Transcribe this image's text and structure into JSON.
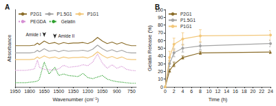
{
  "chart_data": [
    {
      "type": "line",
      "title": "A",
      "x_label": "Wavenumber (cm⁻¹)",
      "y_label": "Absorbance",
      "x": [
        1950,
        1900,
        1850,
        1800,
        1750,
        1720,
        1700,
        1650,
        1600,
        1540,
        1500,
        1450,
        1400,
        1350,
        1300,
        1250,
        1200,
        1150,
        1100,
        1050,
        1000,
        950,
        900,
        850,
        800,
        750,
        700
      ],
      "series": [
        {
          "name": "P2G1",
          "color": "#8b6d2a",
          "line_style": "solid",
          "marker": "none",
          "values": [
            8.0,
            8.0,
            8.0,
            8.0,
            8.1,
            8.5,
            8.2,
            8.9,
            8.4,
            8.6,
            8.3,
            8.6,
            8.4,
            8.5,
            8.5,
            8.6,
            8.4,
            8.8,
            9.6,
            8.9,
            8.4,
            8.7,
            8.3,
            8.6,
            8.2,
            8.0,
            8.0
          ]
        },
        {
          "name": "P1.5G1",
          "color": "#a3a3a3",
          "line_style": "solid",
          "marker": "none",
          "values": [
            6.6,
            6.6,
            6.6,
            6.6,
            6.7,
            7.1,
            6.8,
            7.4,
            6.9,
            7.1,
            6.8,
            7.1,
            6.9,
            7.0,
            7.0,
            7.1,
            6.9,
            7.3,
            8.1,
            7.4,
            6.9,
            7.2,
            6.8,
            7.1,
            6.7,
            6.6,
            6.6
          ]
        },
        {
          "name": "P1G1",
          "color": "#f2c77a",
          "line_style": "solid",
          "marker": "none",
          "values": [
            5.3,
            5.3,
            5.3,
            5.3,
            5.4,
            5.8,
            5.5,
            6.0,
            5.6,
            5.8,
            5.5,
            5.8,
            5.6,
            5.7,
            5.7,
            5.8,
            5.6,
            6.0,
            6.8,
            6.1,
            5.6,
            5.9,
            5.5,
            5.8,
            5.4,
            5.3,
            5.3
          ]
        },
        {
          "name": "PEGDA",
          "color": "#d58fd3",
          "line_style": "dotted",
          "marker": "none",
          "values": [
            3.2,
            3.2,
            3.2,
            3.3,
            3.5,
            5.2,
            3.8,
            3.4,
            3.3,
            3.3,
            3.5,
            4.2,
            3.8,
            3.9,
            4.0,
            4.3,
            4.1,
            4.8,
            6.4,
            4.6,
            3.6,
            4.3,
            3.6,
            4.0,
            3.4,
            3.2,
            3.1
          ]
        },
        {
          "name": "Gelatin",
          "color": "#2ea02e",
          "line_style": "dotted",
          "marker": "none",
          "values": [
            0.8,
            0.8,
            0.8,
            0.9,
            1.0,
            1.1,
            1.5,
            4.8,
            2.5,
            3.8,
            2.2,
            2.5,
            2.2,
            2.1,
            2.0,
            2.6,
            1.8,
            1.6,
            1.9,
            2.2,
            1.5,
            1.2,
            1.0,
            0.9,
            0.8,
            0.7,
            0.7
          ]
        }
      ],
      "annotations": [
        {
          "text": "Amide I",
          "x": 1650,
          "y": 9.7
        },
        {
          "text": "Amide II",
          "x": 1540,
          "y": 9.4
        }
      ],
      "xlim": [
        700,
        1950
      ],
      "xticks": [
        1950,
        1800,
        1650,
        1500,
        1350,
        1200,
        1050,
        900,
        750
      ],
      "ylim": [
        0,
        15
      ],
      "tick_labels": "x",
      "grid": false,
      "legend": "top-left"
    },
    {
      "type": "line",
      "title": "B",
      "x_label": "Time (h)",
      "y_label": "Gelatin Release (%)",
      "x": [
        0,
        1,
        2,
        4,
        8,
        24
      ],
      "series": [
        {
          "name": "P2G1",
          "color": "#8b6d2a",
          "marker": "triangle",
          "line_style": "solid",
          "values": [
            0,
            21,
            29,
            38,
            44,
            45
          ],
          "errors": [
            0,
            2,
            3,
            2,
            2,
            2
          ]
        },
        {
          "name": "P1.5G1",
          "color": "#a3a3a3",
          "marker": "circle",
          "line_style": "solid",
          "values": [
            0,
            30,
            44,
            50,
            53,
            56
          ],
          "errors": [
            0,
            4,
            5,
            5,
            5,
            4
          ]
        },
        {
          "name": "P1G1",
          "color": "#f2c77a",
          "marker": "circle",
          "line_style": "solid",
          "values": [
            0,
            38,
            55,
            62,
            66,
            67
          ],
          "errors": [
            0,
            8,
            8,
            8,
            8,
            6
          ]
        }
      ],
      "xlim": [
        0,
        24
      ],
      "xticks": [
        0,
        2,
        4,
        6,
        8,
        10,
        12,
        14,
        16,
        18,
        20,
        22,
        24
      ],
      "ylim": [
        0,
        100
      ],
      "yticks": [
        0,
        10,
        20,
        30,
        40,
        50,
        60,
        70,
        80,
        90,
        100
      ],
      "grid": false,
      "legend": "top-left"
    }
  ]
}
